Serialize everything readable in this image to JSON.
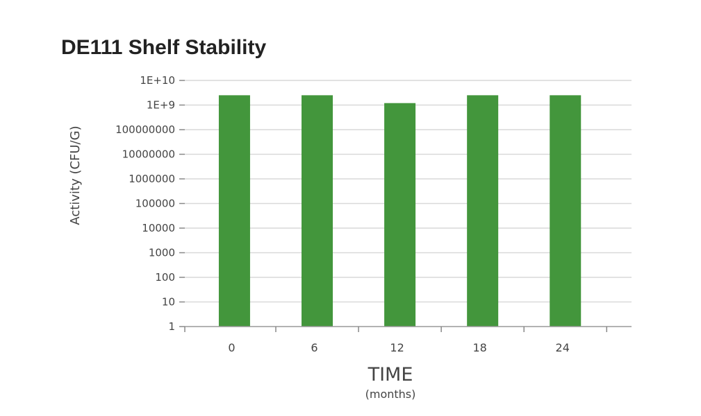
{
  "chart_data": {
    "type": "bar",
    "title": "DE111 Shelf Stability",
    "xlabel": "TIME",
    "xlabel_sub": "(months)",
    "ylabel": "Activity (CFU/G)",
    "yscale": "log",
    "ylim": [
      1,
      10000000000
    ],
    "yticks": [
      1,
      10,
      100,
      1000,
      10000,
      100000,
      1000000,
      10000000,
      100000000,
      1000000000,
      10000000000
    ],
    "ytick_labels": [
      "1",
      "10",
      "100",
      "1000",
      "10000",
      "100000",
      "1000000",
      "10000000",
      "100000000",
      "1E+9",
      "1E+10"
    ],
    "categories": [
      "0",
      "6",
      "12",
      "18",
      "24"
    ],
    "values": [
      2500000000,
      2500000000,
      1200000000,
      2500000000,
      2500000000
    ],
    "bar_color": "#43963c",
    "grid": "horizontal",
    "legend": "none"
  }
}
